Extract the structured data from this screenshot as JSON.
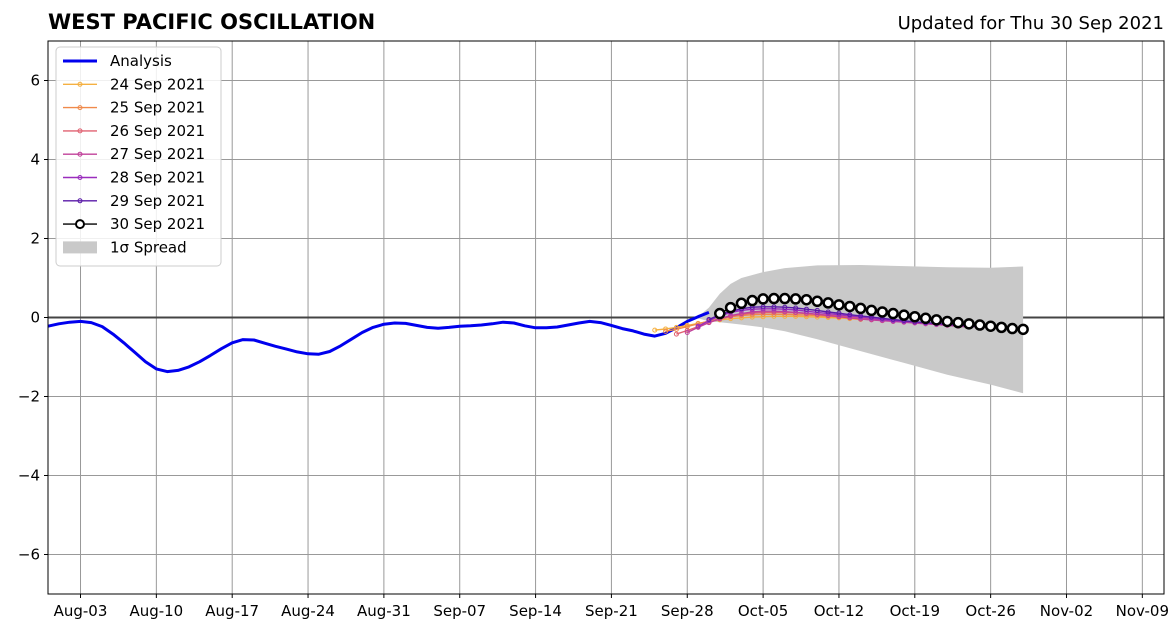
{
  "chart_data": {
    "type": "line",
    "title": "WEST PACIFIC OSCILLATION",
    "subtitle": "Updated for Thu 30 Sep 2021",
    "xlabel": "",
    "ylabel": "",
    "ylim": [
      -7,
      7
    ],
    "xlim": [
      "2021-07-31",
      "2021-11-11"
    ],
    "grid": true,
    "legend_position": "top-left",
    "x_ticks": [
      "Aug-03",
      "Aug-10",
      "Aug-17",
      "Aug-24",
      "Aug-31",
      "Sep-07",
      "Sep-14",
      "Sep-21",
      "Sep-28",
      "Oct-05",
      "Oct-12",
      "Oct-19",
      "Oct-26",
      "Nov-02",
      "Nov-09"
    ],
    "x_tick_dates": [
      "2021-08-03",
      "2021-08-10",
      "2021-08-17",
      "2021-08-24",
      "2021-08-31",
      "2021-09-07",
      "2021-09-14",
      "2021-09-21",
      "2021-09-28",
      "2021-10-05",
      "2021-10-12",
      "2021-10-19",
      "2021-10-26",
      "2021-11-02",
      "2021-11-09"
    ],
    "y_ticks": [
      6,
      4,
      2,
      0,
      -2,
      -4,
      -6
    ],
    "y_tick_labels": [
      "6",
      "4",
      "2",
      "0",
      "−2",
      "−4",
      "−6"
    ],
    "series": [
      {
        "name": "Analysis",
        "color": "#0000ee",
        "style": "line",
        "x": [
          "2021-07-31",
          "2021-08-01",
          "2021-08-02",
          "2021-08-03",
          "2021-08-04",
          "2021-08-05",
          "2021-08-06",
          "2021-08-07",
          "2021-08-08",
          "2021-08-09",
          "2021-08-10",
          "2021-08-11",
          "2021-08-12",
          "2021-08-13",
          "2021-08-14",
          "2021-08-15",
          "2021-08-16",
          "2021-08-17",
          "2021-08-18",
          "2021-08-19",
          "2021-08-20",
          "2021-08-21",
          "2021-08-22",
          "2021-08-23",
          "2021-08-24",
          "2021-08-25",
          "2021-08-26",
          "2021-08-27",
          "2021-08-28",
          "2021-08-29",
          "2021-08-30",
          "2021-08-31",
          "2021-09-01",
          "2021-09-02",
          "2021-09-03",
          "2021-09-04",
          "2021-09-05",
          "2021-09-06",
          "2021-09-07",
          "2021-09-08",
          "2021-09-09",
          "2021-09-10",
          "2021-09-11",
          "2021-09-12",
          "2021-09-13",
          "2021-09-14",
          "2021-09-15",
          "2021-09-16",
          "2021-09-17",
          "2021-09-18",
          "2021-09-19",
          "2021-09-20",
          "2021-09-21",
          "2021-09-22",
          "2021-09-23",
          "2021-09-24",
          "2021-09-25",
          "2021-09-26",
          "2021-09-27",
          "2021-09-28",
          "2021-09-29",
          "2021-09-30"
        ],
        "values": [
          -0.22,
          -0.16,
          -0.12,
          -0.1,
          -0.13,
          -0.23,
          -0.42,
          -0.64,
          -0.88,
          -1.12,
          -1.3,
          -1.37,
          -1.34,
          -1.25,
          -1.12,
          -0.96,
          -0.79,
          -0.64,
          -0.56,
          -0.57,
          -0.65,
          -0.73,
          -0.8,
          -0.87,
          -0.92,
          -0.93,
          -0.86,
          -0.72,
          -0.55,
          -0.38,
          -0.25,
          -0.17,
          -0.14,
          -0.15,
          -0.2,
          -0.25,
          -0.27,
          -0.25,
          -0.22,
          -0.21,
          -0.19,
          -0.16,
          -0.12,
          -0.14,
          -0.21,
          -0.26,
          -0.26,
          -0.24,
          -0.19,
          -0.14,
          -0.1,
          -0.13,
          -0.2,
          -0.28,
          -0.34,
          -0.42,
          -0.47,
          -0.4,
          -0.26,
          -0.1,
          0.02,
          0.13
        ]
      },
      {
        "name": "24 Sep 2021",
        "color": "#f5b041",
        "style": "dots",
        "x": [
          "2021-09-25",
          "2021-09-26",
          "2021-09-27",
          "2021-09-28",
          "2021-09-29",
          "2021-09-30",
          "2021-10-01",
          "2021-10-02",
          "2021-10-03",
          "2021-10-04",
          "2021-10-05",
          "2021-10-06",
          "2021-10-07",
          "2021-10-08",
          "2021-10-09",
          "2021-10-10",
          "2021-10-11",
          "2021-10-12",
          "2021-10-13",
          "2021-10-14"
        ],
        "values": [
          -0.32,
          -0.29,
          -0.25,
          -0.2,
          -0.15,
          -0.1,
          -0.06,
          -0.03,
          -0.01,
          0.01,
          0.02,
          0.03,
          0.03,
          0.03,
          0.02,
          0.01,
          0.0,
          -0.01,
          -0.03,
          -0.05
        ]
      },
      {
        "name": "25 Sep 2021",
        "color": "#f08a4b",
        "style": "dots",
        "x": [
          "2021-09-26",
          "2021-09-27",
          "2021-09-28",
          "2021-09-29",
          "2021-09-30",
          "2021-10-01",
          "2021-10-02",
          "2021-10-03",
          "2021-10-04",
          "2021-10-05",
          "2021-10-06",
          "2021-10-07",
          "2021-10-08",
          "2021-10-09",
          "2021-10-10",
          "2021-10-11",
          "2021-10-12",
          "2021-10-13",
          "2021-10-14",
          "2021-10-15"
        ],
        "values": [
          -0.35,
          -0.3,
          -0.23,
          -0.16,
          -0.09,
          -0.03,
          0.02,
          0.05,
          0.07,
          0.08,
          0.08,
          0.08,
          0.07,
          0.06,
          0.05,
          0.03,
          0.01,
          -0.01,
          -0.03,
          -0.05
        ]
      },
      {
        "name": "26 Sep 2021",
        "color": "#e06070",
        "style": "dots",
        "x": [
          "2021-09-27",
          "2021-09-28",
          "2021-09-29",
          "2021-09-30",
          "2021-10-01",
          "2021-10-02",
          "2021-10-03",
          "2021-10-04",
          "2021-10-05",
          "2021-10-06",
          "2021-10-07",
          "2021-10-08",
          "2021-10-09",
          "2021-10-10",
          "2021-10-11",
          "2021-10-12",
          "2021-10-13",
          "2021-10-14",
          "2021-10-15",
          "2021-10-16"
        ],
        "values": [
          -0.42,
          -0.33,
          -0.23,
          -0.13,
          -0.04,
          0.03,
          0.08,
          0.11,
          0.13,
          0.13,
          0.13,
          0.12,
          0.1,
          0.08,
          0.06,
          0.04,
          0.01,
          -0.02,
          -0.05,
          -0.08
        ]
      },
      {
        "name": "27 Sep 2021",
        "color": "#c0409a",
        "style": "dots",
        "x": [
          "2021-09-28",
          "2021-09-29",
          "2021-09-30",
          "2021-10-01",
          "2021-10-02",
          "2021-10-03",
          "2021-10-04",
          "2021-10-05",
          "2021-10-06",
          "2021-10-07",
          "2021-10-08",
          "2021-10-09",
          "2021-10-10",
          "2021-10-11",
          "2021-10-12",
          "2021-10-13",
          "2021-10-14",
          "2021-10-15",
          "2021-10-16",
          "2021-10-17",
          "2021-10-18",
          "2021-10-19",
          "2021-10-20",
          "2021-10-21",
          "2021-10-22",
          "2021-10-23",
          "2021-10-24"
        ],
        "values": [
          -0.38,
          -0.25,
          -0.13,
          -0.03,
          0.05,
          0.1,
          0.14,
          0.16,
          0.16,
          0.15,
          0.13,
          0.11,
          0.08,
          0.05,
          0.02,
          -0.01,
          -0.04,
          -0.06,
          -0.08,
          -0.1,
          -0.12,
          -0.14,
          -0.16,
          -0.18,
          -0.2,
          -0.22,
          -0.24
        ]
      },
      {
        "name": "28 Sep 2021",
        "color": "#9a2dbe",
        "style": "dots",
        "x": [
          "2021-09-29",
          "2021-09-30",
          "2021-10-01",
          "2021-10-02",
          "2021-10-03",
          "2021-10-04",
          "2021-10-05",
          "2021-10-06",
          "2021-10-07",
          "2021-10-08",
          "2021-10-09",
          "2021-10-10",
          "2021-10-11",
          "2021-10-12",
          "2021-10-13",
          "2021-10-14",
          "2021-10-15",
          "2021-10-16",
          "2021-10-17",
          "2021-10-18",
          "2021-10-19",
          "2021-10-20",
          "2021-10-21",
          "2021-10-22",
          "2021-10-23",
          "2021-10-24",
          "2021-10-25"
        ],
        "values": [
          -0.22,
          -0.08,
          0.04,
          0.13,
          0.18,
          0.21,
          0.22,
          0.22,
          0.21,
          0.19,
          0.16,
          0.13,
          0.1,
          0.07,
          0.04,
          0.01,
          -0.02,
          -0.05,
          -0.08,
          -0.1,
          -0.12,
          -0.14,
          -0.16,
          -0.18,
          -0.2,
          -0.22,
          -0.24
        ]
      },
      {
        "name": "29 Sep 2021",
        "color": "#5a1aa8",
        "style": "dots",
        "x": [
          "2021-09-30",
          "2021-10-01",
          "2021-10-02",
          "2021-10-03",
          "2021-10-04",
          "2021-10-05",
          "2021-10-06",
          "2021-10-07",
          "2021-10-08",
          "2021-10-09",
          "2021-10-10",
          "2021-10-11",
          "2021-10-12",
          "2021-10-13",
          "2021-10-14",
          "2021-10-15",
          "2021-10-16",
          "2021-10-17",
          "2021-10-18",
          "2021-10-19",
          "2021-10-20",
          "2021-10-21",
          "2021-10-22",
          "2021-10-23",
          "2021-10-24",
          "2021-10-25",
          "2021-10-26"
        ],
        "values": [
          -0.05,
          0.07,
          0.16,
          0.22,
          0.26,
          0.27,
          0.27,
          0.26,
          0.24,
          0.21,
          0.18,
          0.14,
          0.11,
          0.07,
          0.04,
          0.01,
          -0.02,
          -0.05,
          -0.08,
          -0.11,
          -0.13,
          -0.15,
          -0.17,
          -0.19,
          -0.21,
          -0.23,
          -0.25
        ]
      },
      {
        "name": "30 Sep 2021",
        "color": "#000000",
        "style": "circles",
        "x": [
          "2021-10-01",
          "2021-10-02",
          "2021-10-03",
          "2021-10-04",
          "2021-10-05",
          "2021-10-06",
          "2021-10-07",
          "2021-10-08",
          "2021-10-09",
          "2021-10-10",
          "2021-10-11",
          "2021-10-12",
          "2021-10-13",
          "2021-10-14",
          "2021-10-15",
          "2021-10-16",
          "2021-10-17",
          "2021-10-18",
          "2021-10-19",
          "2021-10-20",
          "2021-10-21",
          "2021-10-22",
          "2021-10-23",
          "2021-10-24",
          "2021-10-25",
          "2021-10-26",
          "2021-10-27",
          "2021-10-28",
          "2021-10-29"
        ],
        "values": [
          0.1,
          0.25,
          0.36,
          0.43,
          0.47,
          0.48,
          0.48,
          0.47,
          0.45,
          0.41,
          0.37,
          0.32,
          0.28,
          0.23,
          0.18,
          0.14,
          0.1,
          0.06,
          0.02,
          -0.02,
          -0.06,
          -0.1,
          -0.13,
          -0.16,
          -0.19,
          -0.22,
          -0.25,
          -0.28,
          -0.3
        ]
      }
    ],
    "spread": {
      "name": "1σ Spread",
      "color": "#c9c9c9",
      "x": [
        "2021-09-29",
        "2021-09-30",
        "2021-10-01",
        "2021-10-02",
        "2021-10-03",
        "2021-10-05",
        "2021-10-07",
        "2021-10-10",
        "2021-10-14",
        "2021-10-18",
        "2021-10-22",
        "2021-10-26",
        "2021-10-29"
      ],
      "upper": [
        0.02,
        0.25,
        0.6,
        0.85,
        1.0,
        1.15,
        1.25,
        1.32,
        1.33,
        1.3,
        1.27,
        1.26,
        1.29
      ],
      "lower": [
        -0.02,
        -0.1,
        -0.12,
        -0.15,
        -0.18,
        -0.25,
        -0.35,
        -0.55,
        -0.85,
        -1.15,
        -1.45,
        -1.7,
        -1.92
      ]
    }
  }
}
